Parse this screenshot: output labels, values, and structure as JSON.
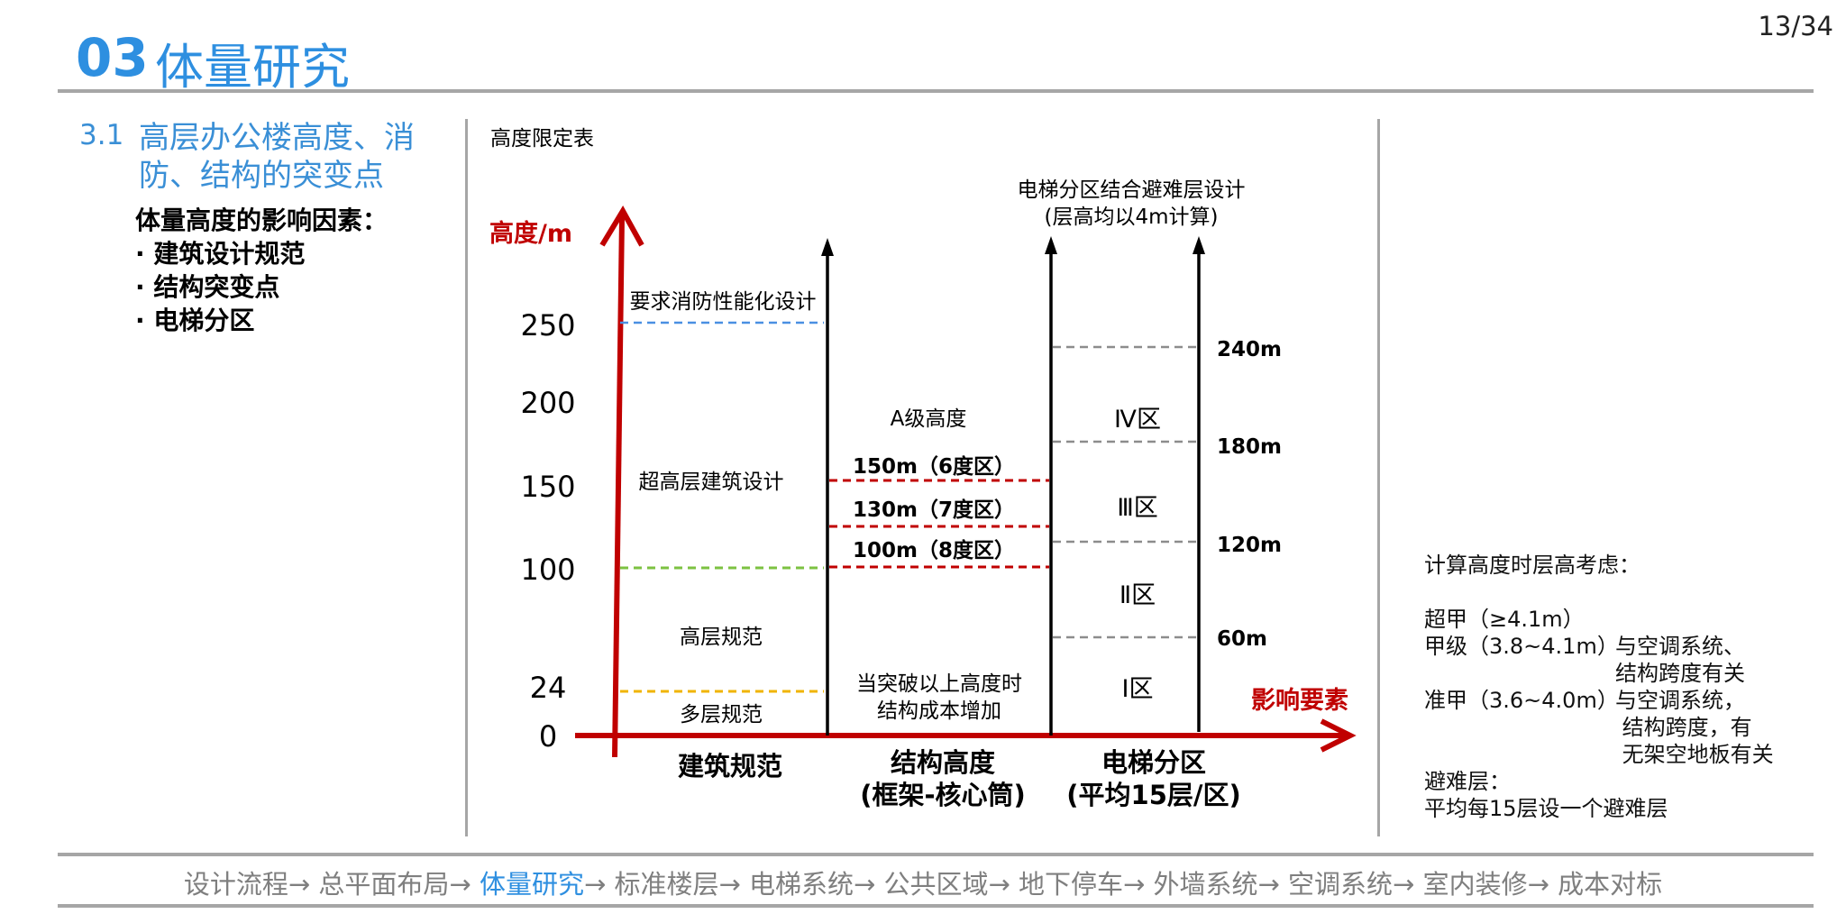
{
  "header": {
    "page_number": "13/34",
    "section_number": "03",
    "section_title": "体量研究"
  },
  "sidebar": {
    "subsection_number": "3.1",
    "subsection_title": "高层办公楼高度、消防、结构的突变点",
    "factors_heading": "体量高度的影响因素：",
    "factors": [
      "· 建筑设计规范",
      "· 结构突变点",
      "· 电梯分区"
    ]
  },
  "diagram": {
    "table_title": "高度限定表",
    "y_axis_label": "高度/m",
    "x_axis_label": "影响要素",
    "y_ticks": [
      "250",
      "200",
      "150",
      "100",
      "24",
      "0"
    ],
    "elevator_heading_1": "电梯分区结合避难层设计",
    "elevator_heading_2": "(层高均以4m计算)",
    "code_labels": {
      "performance": "要求消防性能化设计",
      "super_high": "超高层建筑设计",
      "high_rise": "高层规范",
      "multi_story": "多层规范"
    },
    "structure_labels": {
      "grade_a": "A级高度",
      "limit_6": "150m（6度区）",
      "limit_7": "130m（7度区）",
      "limit_8": "100m（8度区）",
      "cost_1": "当突破以上高度时",
      "cost_2": "结构成本增加"
    },
    "zones": [
      "Ⅳ区",
      "Ⅲ区",
      "Ⅱ区",
      "Ⅰ区"
    ],
    "zone_heights": [
      "240m",
      "180m",
      "120m",
      "60m"
    ],
    "categories": {
      "code": "建筑规范",
      "structure_1": "结构高度",
      "structure_2": "(框架-核心筒)",
      "elevator_1": "电梯分区",
      "elevator_2": "(平均15层/区)"
    },
    "colors": {
      "axis": "#c00000",
      "fire_line": "#4a90e2",
      "high_rise_line": "#7cc242",
      "multi_story_line": "#f0b400",
      "structure_line": "#c00000",
      "zone_line": "#8c8c8c"
    }
  },
  "notes": {
    "heading": "计算高度时层高考虑：",
    "super_a_label": "超甲（≥4.1m）",
    "grade_a_label": "甲级（3.8~4.1m）",
    "grade_a_text_1": "与空调系统、",
    "grade_a_text_2": "结构跨度有关",
    "near_a_label": "准甲（3.6~4.0m）",
    "near_a_text_1": "与空调系统，",
    "near_a_text_2": " 结构跨度，有",
    "near_a_text_3": " 无架空地板有关",
    "refuge_heading": "避难层：",
    "refuge_text": "平均每15层设一个避难层"
  },
  "nav": {
    "before": "设计流程→ 总平面布局→ ",
    "active": "体量研究",
    "after": "→ 标准楼层→ 电梯系统→ 公共区域→ 地下停车→ 外墙系统→ 空调系统→ 室内装修→ 成本对标"
  }
}
